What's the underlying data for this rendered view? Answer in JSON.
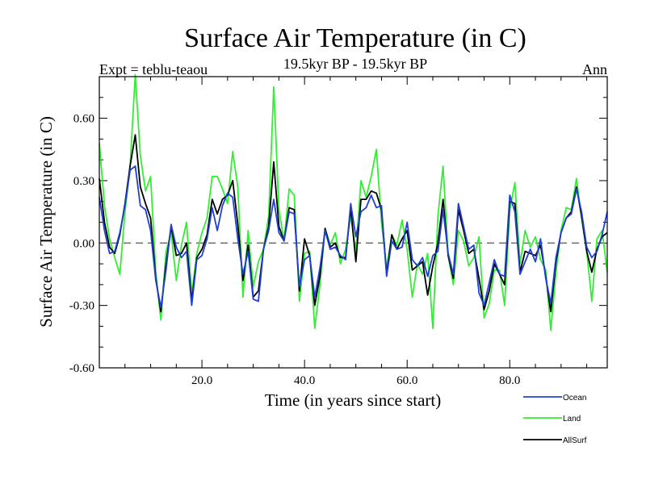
{
  "chart_data": {
    "type": "line",
    "title": "Surface Air Temperature (in C)",
    "subtitle": "19.5kyr BP - 19.5kyr BP",
    "left_label": "Expt = teblu-teaou",
    "right_label": "Ann",
    "xlabel": "Time (in years since start)",
    "ylabel": "Surface Air Temperature (in C)",
    "xlim": [
      0,
      99
    ],
    "ylim": [
      -0.6,
      0.8
    ],
    "yticks": [
      -0.6,
      -0.3,
      0.0,
      0.3,
      0.6
    ],
    "ytick_labels": [
      "-0.60",
      "-0.30",
      "0.00",
      "0.30",
      "0.60"
    ],
    "xticks": [
      20,
      40,
      60,
      80
    ],
    "xtick_labels": [
      "20.0",
      "40.0",
      "60.0",
      "80.0"
    ],
    "zero_line": true,
    "x": [
      0,
      1,
      2,
      3,
      4,
      5,
      6,
      7,
      8,
      9,
      10,
      11,
      12,
      13,
      14,
      15,
      16,
      17,
      18,
      19,
      20,
      21,
      22,
      23,
      24,
      25,
      26,
      27,
      28,
      29,
      30,
      31,
      32,
      33,
      34,
      35,
      36,
      37,
      38,
      39,
      40,
      41,
      42,
      43,
      44,
      45,
      46,
      47,
      48,
      49,
      50,
      51,
      52,
      53,
      54,
      55,
      56,
      57,
      58,
      59,
      60,
      61,
      62,
      63,
      64,
      65,
      66,
      67,
      68,
      69,
      70,
      71,
      72,
      73,
      74,
      75,
      76,
      77,
      78,
      79,
      80,
      81,
      82,
      83,
      84,
      85,
      86,
      87,
      88,
      89,
      90,
      91,
      92,
      93,
      94,
      95,
      96,
      97,
      98,
      99
    ],
    "series": [
      {
        "name": "Ocean",
        "color": "#1f3fd6",
        "values": [
          0.22,
          0.06,
          -0.05,
          -0.04,
          0.05,
          0.18,
          0.35,
          0.37,
          0.18,
          0.16,
          0.06,
          -0.18,
          -0.31,
          -0.13,
          0.09,
          -0.02,
          -0.07,
          -0.04,
          -0.3,
          -0.08,
          -0.06,
          0.02,
          0.17,
          0.06,
          0.18,
          0.24,
          0.22,
          0.02,
          -0.15,
          -0.04,
          -0.27,
          -0.28,
          -0.03,
          0.06,
          0.21,
          0.05,
          0.01,
          0.15,
          0.14,
          -0.21,
          -0.08,
          -0.06,
          -0.26,
          -0.12,
          0.06,
          -0.03,
          -0.02,
          -0.06,
          -0.08,
          0.19,
          0.03,
          0.15,
          0.17,
          0.23,
          0.17,
          0.18,
          -0.16,
          0.01,
          -0.03,
          -0.02,
          0.1,
          -0.08,
          -0.11,
          -0.07,
          -0.16,
          -0.06,
          -0.04,
          0.16,
          -0.05,
          -0.15,
          0.19,
          0.08,
          -0.03,
          -0.01,
          -0.24,
          -0.3,
          -0.19,
          -0.08,
          -0.15,
          -0.16,
          0.23,
          0.15,
          -0.15,
          -0.09,
          -0.03,
          -0.09,
          0.02,
          -0.17,
          -0.29,
          -0.07,
          0.05,
          0.12,
          0.14,
          0.26,
          0.15,
          -0.02,
          -0.07,
          -0.04,
          0.04,
          0.15
        ]
      },
      {
        "name": "Land",
        "color": "#33ee33",
        "values": [
          0.48,
          0.18,
          0.02,
          -0.07,
          -0.15,
          0.15,
          0.37,
          0.81,
          0.42,
          0.25,
          0.32,
          -0.14,
          -0.37,
          -0.04,
          0.05,
          -0.18,
          -0.01,
          0.1,
          -0.25,
          -0.05,
          0.05,
          0.12,
          0.32,
          0.32,
          0.26,
          0.19,
          0.44,
          0.27,
          -0.26,
          0.06,
          -0.21,
          -0.09,
          -0.03,
          0.13,
          0.75,
          0.16,
          0.01,
          0.26,
          0.23,
          -0.28,
          -0.05,
          -0.04,
          -0.41,
          -0.2,
          0.07,
          -0.01,
          0.05,
          -0.1,
          -0.03,
          0.13,
          -0.04,
          0.3,
          0.22,
          0.32,
          0.45,
          0.1,
          -0.12,
          0.04,
          -0.01,
          0.11,
          -0.03,
          -0.26,
          -0.1,
          -0.15,
          -0.05,
          -0.41,
          0.13,
          0.37,
          -0.06,
          -0.2,
          0.06,
          0.01,
          -0.11,
          -0.07,
          0.03,
          -0.36,
          -0.29,
          -0.13,
          -0.13,
          -0.3,
          0.16,
          0.29,
          -0.1,
          0.06,
          -0.02,
          0.03,
          -0.08,
          -0.13,
          -0.42,
          -0.14,
          0.06,
          0.17,
          0.16,
          0.31,
          0.12,
          -0.04,
          -0.28,
          0.02,
          0.06,
          -0.14
        ]
      },
      {
        "name": "AllSurf",
        "color": "#000000",
        "values": [
          0.31,
          0.1,
          -0.02,
          -0.05,
          0.04,
          0.19,
          0.37,
          0.52,
          0.27,
          0.19,
          0.12,
          -0.17,
          -0.33,
          -0.1,
          0.08,
          -0.06,
          -0.05,
          0.0,
          -0.28,
          -0.07,
          -0.03,
          0.04,
          0.21,
          0.14,
          0.21,
          0.23,
          0.3,
          0.09,
          -0.18,
          -0.01,
          -0.26,
          -0.23,
          -0.03,
          0.08,
          0.39,
          0.08,
          0.01,
          0.17,
          0.16,
          -0.23,
          0.02,
          -0.06,
          -0.3,
          -0.16,
          0.07,
          -0.02,
          0.0,
          -0.07,
          -0.07,
          0.17,
          -0.09,
          0.21,
          0.21,
          0.25,
          0.24,
          0.16,
          -0.15,
          0.04,
          -0.03,
          0.02,
          0.06,
          -0.13,
          -0.11,
          -0.09,
          -0.25,
          -0.11,
          0.0,
          0.21,
          -0.06,
          -0.17,
          0.16,
          0.06,
          -0.05,
          -0.03,
          -0.17,
          -0.32,
          -0.23,
          -0.1,
          -0.15,
          -0.2,
          0.2,
          0.19,
          -0.14,
          -0.04,
          -0.05,
          -0.06,
          -0.01,
          -0.16,
          -0.33,
          -0.09,
          0.05,
          0.12,
          0.15,
          0.27,
          0.13,
          -0.04,
          -0.14,
          -0.03,
          0.03,
          0.05
        ]
      }
    ],
    "legend": [
      {
        "name": "Ocean",
        "color": "#1f3fd6"
      },
      {
        "name": "Land",
        "color": "#33ee33"
      },
      {
        "name": "AllSurf",
        "color": "#000000"
      }
    ],
    "legend_position": "bottom-right"
  }
}
